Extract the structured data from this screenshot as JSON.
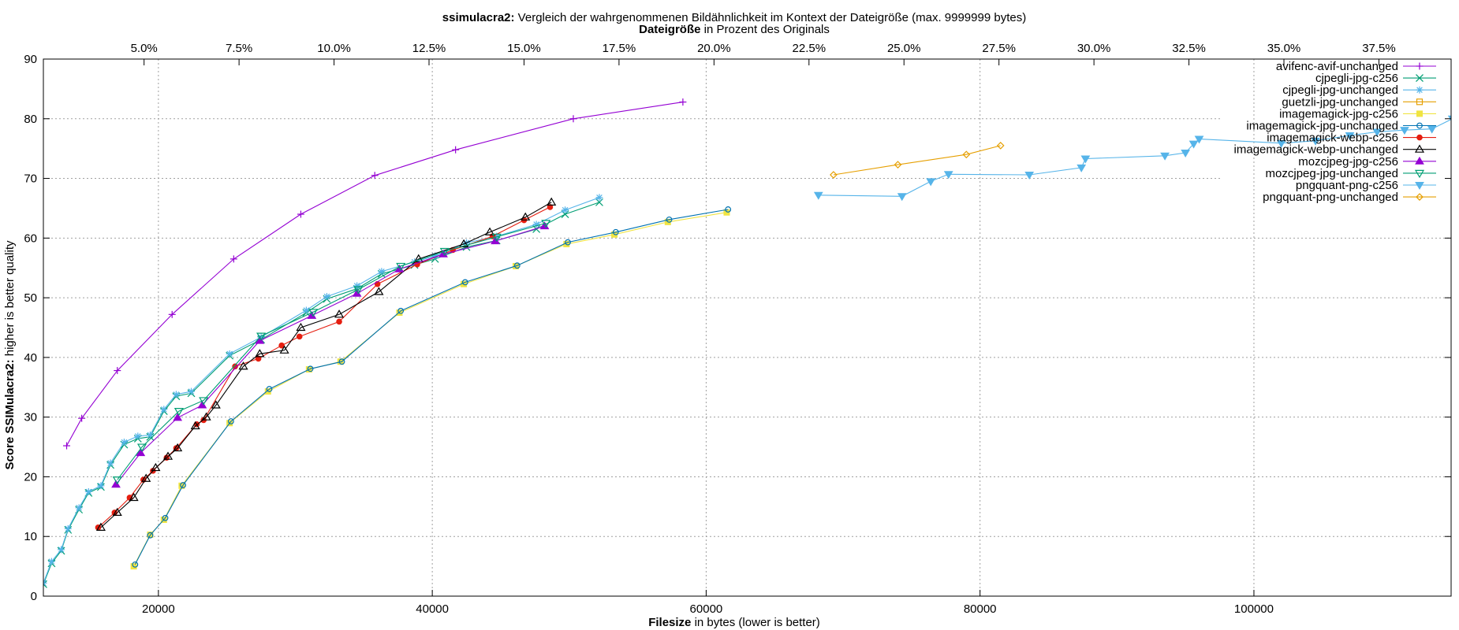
{
  "chart_data": {
    "type": "line",
    "title_bold": "ssimulacra2:",
    "title_rest": " Vergleich der wahrgenommenen Bildähnlichkeit im Kontext der Dateigröße (max. 9999999 bytes)",
    "x2label_bold": "Dateigröße",
    "x2label_rest": " in Prozent des Originals",
    "xlabel_bold": "Filesize",
    "xlabel_rest": " in bytes (lower is better)",
    "ylabel_bold": "Score SSIMulacra2:",
    "ylabel_rest": " higher is better quality",
    "xlim": [
      11600,
      114400
    ],
    "ylim": [
      0,
      90
    ],
    "x_ticks": [
      20000,
      40000,
      60000,
      80000,
      100000
    ],
    "x_tick_labels": [
      "20000",
      "40000",
      "60000",
      "80000",
      "100000"
    ],
    "y_ticks": [
      0,
      10,
      20,
      30,
      40,
      50,
      60,
      70,
      80,
      90
    ],
    "y_tick_labels": [
      "0",
      "10",
      "20",
      "30",
      "40",
      "50",
      "60",
      "70",
      "80",
      "90"
    ],
    "x2_ticks": [
      5.0,
      7.5,
      10.0,
      12.5,
      15.0,
      17.5,
      20.0,
      22.5,
      25.0,
      27.5,
      30.0,
      32.5,
      35.0,
      37.5
    ],
    "x2_tick_labels": [
      "5.0%",
      "7.5%",
      "10.0%",
      "12.5%",
      "15.0%",
      "17.5%",
      "20.0%",
      "22.5%",
      "25.0%",
      "27.5%",
      "30.0%",
      "32.5%",
      "35.0%",
      "37.5%"
    ],
    "x2lim": [
      2.35,
      39.4
    ],
    "grid": true,
    "legend_position": "top-right",
    "series": [
      {
        "name": "avifenc-avif-unchanged",
        "color": "#9400d3",
        "marker": "plus",
        "x": [
          13300,
          14400,
          17000,
          21000,
          25500,
          30400,
          35800,
          41700,
          50300,
          58300
        ],
        "y": [
          25.2,
          29.8,
          37.8,
          47.2,
          56.5,
          64.0,
          70.5,
          74.8,
          80.0,
          82.8
        ]
      },
      {
        "name": "cjpegli-jpg-c256",
        "color": "#009e73",
        "marker": "x",
        "x": [
          11600,
          12200,
          12900,
          13400,
          14200,
          14900,
          15800,
          16500,
          17500,
          18500,
          19400,
          20400,
          21300,
          22400,
          25200,
          27500,
          30800,
          32300,
          34500,
          36300,
          38700,
          40200,
          42500,
          44700,
          47600,
          49700,
          52200
        ],
        "y": [
          2.0,
          5.5,
          7.6,
          11.1,
          14.5,
          17.3,
          18.3,
          22.0,
          25.4,
          26.4,
          26.7,
          31.0,
          33.5,
          34.0,
          40.3,
          43.0,
          47.5,
          49.8,
          51.5,
          54.0,
          55.5,
          56.5,
          58.5,
          59.6,
          61.5,
          64.0,
          66.0
        ]
      },
      {
        "name": "cjpegli-jpg-unchanged",
        "color": "#56b4e9",
        "marker": "star",
        "x": [
          11600,
          12200,
          12900,
          13400,
          14200,
          14900,
          15800,
          16500,
          17500,
          18500,
          19400,
          20400,
          21300,
          22400,
          25200,
          27500,
          30800,
          32300,
          34500,
          36300,
          38700,
          40200,
          42500,
          44700,
          47600,
          49700,
          52200
        ],
        "y": [
          2.2,
          5.8,
          7.8,
          11.3,
          14.8,
          17.5,
          18.5,
          22.3,
          25.8,
          26.8,
          27.0,
          31.3,
          33.8,
          34.3,
          40.6,
          43.4,
          47.9,
          50.2,
          52.0,
          54.4,
          56.0,
          57.0,
          59.2,
          60.3,
          62.3,
          64.7,
          66.8
        ]
      },
      {
        "name": "guetzli-jpg-unchanged",
        "color": "#e69f00",
        "marker": "square",
        "x": [],
        "y": []
      },
      {
        "name": "imagemagick-jpg-c256",
        "color": "#f0e442",
        "marker": "square-filled",
        "x": [
          18200,
          19400,
          20400,
          21700,
          25200,
          28000,
          31000,
          33300,
          37600,
          42300,
          46100,
          49800,
          53300,
          57200,
          61500
        ],
        "y": [
          5.0,
          10.3,
          12.8,
          18.5,
          29.0,
          34.3,
          38.0,
          39.3,
          47.5,
          52.3,
          55.3,
          59.0,
          60.6,
          62.7,
          64.3
        ]
      },
      {
        "name": "imagemagick-jpg-unchanged",
        "color": "#0072b2",
        "marker": "circle",
        "x": [
          18300,
          19400,
          20500,
          21800,
          25300,
          28100,
          31100,
          33400,
          37700,
          42400,
          46200,
          49900,
          53400,
          57300,
          61600
        ],
        "y": [
          5.3,
          10.2,
          13.1,
          18.6,
          29.3,
          34.7,
          38.1,
          39.3,
          47.8,
          52.6,
          55.4,
          59.3,
          61.0,
          63.1,
          64.8
        ]
      },
      {
        "name": "imagemagick-webp-c256",
        "color": "#e51e10",
        "marker": "circle-filled",
        "x": [
          15600,
          16800,
          17900,
          18900,
          19600,
          20600,
          21300,
          22800,
          23300,
          25600,
          27300,
          29000,
          30300,
          33200,
          36000,
          38900,
          41500,
          44400,
          46700,
          48600
        ],
        "y": [
          11.5,
          14.0,
          16.5,
          19.5,
          21.0,
          23.2,
          24.8,
          28.8,
          29.5,
          38.5,
          39.8,
          42.0,
          43.5,
          46.0,
          52.3,
          55.6,
          58.0,
          60.3,
          63.0,
          65.2
        ]
      },
      {
        "name": "imagemagick-webp-unchanged",
        "color": "#000000",
        "marker": "triangle",
        "x": [
          15800,
          17000,
          18200,
          19100,
          19800,
          20700,
          21400,
          22700,
          23500,
          24200,
          26200,
          27400,
          29200,
          30400,
          33200,
          36100,
          39000,
          42300,
          44200,
          46800,
          48700
        ],
        "y": [
          11.5,
          14.0,
          16.5,
          19.7,
          21.5,
          23.4,
          24.8,
          28.5,
          30.0,
          32.0,
          38.5,
          40.6,
          41.2,
          45.0,
          47.2,
          51.0,
          56.5,
          59.0,
          61.0,
          63.5,
          66.0
        ]
      },
      {
        "name": "mozcjpeg-jpg-c256",
        "color": "#9400d3",
        "marker": "triangle-filled",
        "x": [
          16900,
          18700,
          21400,
          23200,
          27400,
          31200,
          34500,
          37600,
          40800,
          44600,
          48200
        ],
        "y": [
          18.7,
          24.0,
          29.9,
          32.0,
          42.8,
          47.0,
          50.7,
          54.8,
          57.3,
          59.5,
          62.0
        ]
      },
      {
        "name": "mozcjpeg-jpg-unchanged",
        "color": "#009e73",
        "marker": "triangle-down",
        "x": [
          17000,
          18800,
          21500,
          23300,
          27500,
          31300,
          34600,
          37700,
          40900,
          44700,
          48300
        ],
        "y": [
          19.5,
          25.0,
          31.0,
          32.8,
          43.6,
          47.6,
          51.4,
          55.3,
          57.8,
          60.2,
          62.5
        ]
      },
      {
        "name": "pngquant-png-c256",
        "color": "#56b4e9",
        "marker": "triangle-down-filled",
        "x": [
          68200,
          74300,
          76400,
          77700,
          83600,
          87400,
          87700,
          93500,
          95000,
          95600,
          96000,
          102000,
          104500,
          107000,
          109000,
          111000,
          113000,
          114500
        ],
        "y": [
          67.2,
          67.0,
          69.5,
          70.7,
          70.6,
          71.8,
          73.3,
          73.8,
          74.3,
          75.8,
          76.6,
          75.9,
          76.3,
          77.2,
          77.8,
          78.1,
          78.3,
          80.0
        ]
      },
      {
        "name": "pngquant-png-unchanged",
        "color": "#e69f00",
        "marker": "diamond",
        "x": [
          69300,
          74000,
          79000,
          81500
        ],
        "y": [
          70.6,
          72.3,
          74.0,
          75.5
        ]
      }
    ]
  }
}
